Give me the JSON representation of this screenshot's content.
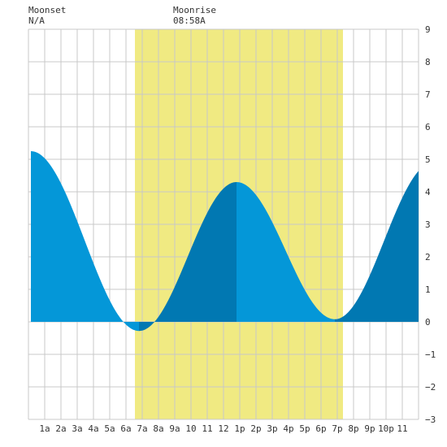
{
  "header": {
    "moonset": {
      "label": "Moonset",
      "value": "N/A"
    },
    "moonrise": {
      "label": "Moonrise",
      "value": "08:58A"
    }
  },
  "chart_data": {
    "type": "area",
    "title": "",
    "xlabel": "",
    "ylabel": "",
    "x_tick_labels": [
      "1a",
      "2a",
      "3a",
      "4a",
      "5a",
      "6a",
      "7a",
      "8a",
      "9a",
      "10",
      "11",
      "12",
      "1p",
      "2p",
      "3p",
      "4p",
      "5p",
      "6p",
      "7p",
      "8p",
      "9p",
      "10p",
      "11"
    ],
    "y_ticks": [
      9,
      8,
      7,
      6,
      5,
      4,
      3,
      2,
      1,
      0,
      -1,
      -2,
      -3
    ],
    "xlim": [
      0,
      24
    ],
    "ylim": [
      -3,
      9
    ],
    "grid": true,
    "shaded_band": {
      "x_start": 6.55,
      "x_end": 19.35,
      "color": "#f0ea82"
    },
    "extrema": [
      {
        "x": 0.15,
        "y": 5.25,
        "type": "high"
      },
      {
        "x": 6.8,
        "y": -0.28,
        "type": "low"
      },
      {
        "x": 12.8,
        "y": 4.3,
        "type": "high"
      },
      {
        "x": 18.85,
        "y": 0.08,
        "type": "low"
      },
      {
        "x": 24.9,
        "y": 4.9,
        "type": "high"
      }
    ],
    "colors": {
      "fill_light": "#0497d8",
      "fill_dark": "#0178b2",
      "grid": "#c8c8c8"
    }
  }
}
